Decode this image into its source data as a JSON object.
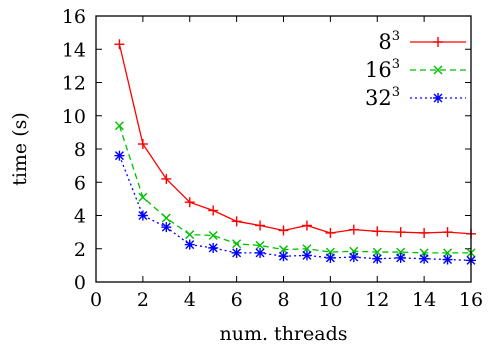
{
  "chart_data": {
    "type": "line",
    "xlabel": "num. threads",
    "ylabel": "time (s)",
    "xlim": [
      0,
      16
    ],
    "ylim": [
      0,
      16
    ],
    "xticks": [
      "0",
      "2",
      "4",
      "6",
      "8",
      "10",
      "12",
      "14",
      "16"
    ],
    "yticks": [
      "0",
      "2",
      "4",
      "6",
      "8",
      "10",
      "12",
      "14",
      "16"
    ],
    "grid": false,
    "legend_position": "top-right",
    "x": [
      1,
      2,
      3,
      4,
      5,
      6,
      7,
      8,
      9,
      10,
      11,
      12,
      13,
      14,
      15,
      16
    ],
    "series": [
      {
        "name_base": "8",
        "name_sup": "3",
        "color": "#ff0000",
        "marker": "plus",
        "dash": "solid",
        "values": [
          14.3,
          8.3,
          6.2,
          4.8,
          4.3,
          3.65,
          3.4,
          3.1,
          3.4,
          2.95,
          3.15,
          3.05,
          3.0,
          2.95,
          3.0,
          2.9
        ]
      },
      {
        "name_base": "16",
        "name_sup": "3",
        "color": "#00c000",
        "marker": "cross",
        "dash": "dashed",
        "values": [
          9.4,
          5.1,
          3.85,
          2.85,
          2.8,
          2.3,
          2.2,
          1.95,
          2.0,
          1.8,
          1.85,
          1.8,
          1.8,
          1.75,
          1.75,
          1.75
        ]
      },
      {
        "name_base": "32",
        "name_sup": "3",
        "color": "#0000ff",
        "marker": "star",
        "dash": "dotted",
        "values": [
          7.6,
          4.0,
          3.3,
          2.25,
          2.05,
          1.75,
          1.75,
          1.55,
          1.6,
          1.45,
          1.5,
          1.4,
          1.45,
          1.4,
          1.35,
          1.3
        ]
      }
    ]
  }
}
